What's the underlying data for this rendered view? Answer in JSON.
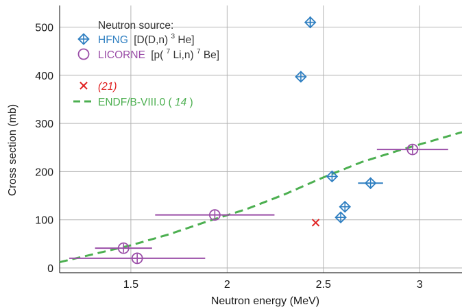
{
  "chart_data": {
    "type": "scatter",
    "xlabel": "Neutron energy (MeV)",
    "ylabel": "Cross section (mb)",
    "xlim": [
      1.13,
      3.22
    ],
    "ylim": [
      -10,
      545
    ],
    "x_ticks": [
      "1.5",
      "2",
      "2.5",
      "3"
    ],
    "y_ticks": [
      "0",
      "100",
      "200",
      "300",
      "400",
      "500"
    ],
    "grid": true,
    "legend": {
      "title": "Neutron source:",
      "placement": "top-left",
      "entries": [
        {
          "series": "hfng",
          "name": "HFNG",
          "reaction": "[D(D,n)",
          "reaction_sup": "3",
          "reaction_tail": "He]"
        },
        {
          "series": "licorne",
          "name": "LICORNE",
          "reaction_pre": "[p(",
          "sup1": "7",
          "reaction_mid": "Li,n)",
          "sup2": "7",
          "reaction_tail": "Be]"
        },
        {
          "series": "ref21",
          "name": "(21)"
        },
        {
          "series": "endf",
          "name_pre": "ENDF/B-VIII.0 (",
          "name_ref": "14",
          "name_post": ")"
        }
      ]
    },
    "series": [
      {
        "key": "hfng",
        "marker": "diamond-plus",
        "color": "#2f7fc1",
        "points": [
          {
            "x": 2.383,
            "y": 397,
            "xerr": 0,
            "yerr": 0
          },
          {
            "x": 2.432,
            "y": 510,
            "xerr": 0,
            "yerr": 12
          },
          {
            "x": 2.545,
            "y": 190,
            "xerr": 0,
            "yerr": 0
          },
          {
            "x": 2.59,
            "y": 105,
            "xerr": 0,
            "yerr": 0
          },
          {
            "x": 2.612,
            "y": 127,
            "xerr": 0,
            "yerr": 0
          },
          {
            "x": 2.745,
            "y": 176,
            "xerr": 0.065,
            "yerr": 0
          }
        ]
      },
      {
        "key": "licorne",
        "marker": "circle-plus",
        "color": "#9b4fa8",
        "points": [
          {
            "x": 1.462,
            "y": 41,
            "xerr": 0.148,
            "yerr": 0
          },
          {
            "x": 1.533,
            "y": 20,
            "xerr": 0.353,
            "yerr": 0
          },
          {
            "x": 1.936,
            "y": 110,
            "xerr": 0.31,
            "yerr": 0
          },
          {
            "x": 2.963,
            "y": 246,
            "xerr": 0.185,
            "yerr": 0
          }
        ]
      },
      {
        "key": "ref21",
        "marker": "x",
        "color": "#e02020",
        "points": [
          {
            "x": 2.46,
            "y": 94
          }
        ]
      },
      {
        "key": "endf",
        "marker": "dashed-line",
        "color": "#4caf50",
        "x": [
          1.13,
          1.3,
          1.5,
          1.7,
          1.9,
          2.1,
          2.3,
          2.5,
          2.7,
          2.9,
          3.1,
          3.22
        ],
        "y": [
          12,
          28,
          47,
          70,
          97,
          122,
          153,
          188,
          220,
          245,
          268,
          282
        ]
      }
    ]
  }
}
